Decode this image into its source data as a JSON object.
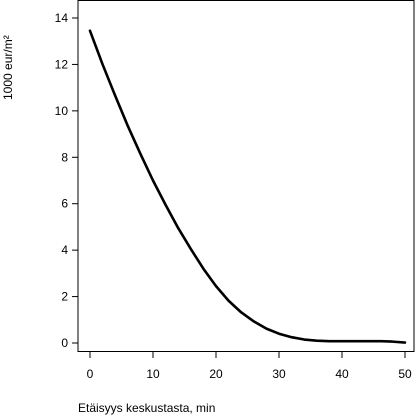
{
  "chart_data": {
    "type": "line",
    "title": "",
    "xlabel": "Etäisyys keskustasta, min",
    "ylabel": "1000 eur/m²",
    "xlim": [
      0,
      50
    ],
    "ylim": [
      0,
      14
    ],
    "x_ticks": [
      0,
      10,
      20,
      30,
      40,
      50
    ],
    "y_ticks": [
      0,
      2,
      4,
      6,
      8,
      10,
      12,
      14
    ],
    "grid": false,
    "legend": "none",
    "series": [
      {
        "color": "#000000",
        "x": [
          0,
          2,
          4,
          6,
          8,
          10,
          12,
          14,
          16,
          18,
          20,
          22,
          24,
          26,
          28,
          30,
          32,
          34,
          36,
          38,
          40,
          42,
          44,
          46,
          48,
          50
        ],
        "y": [
          13.45,
          12.0,
          10.65,
          9.35,
          8.15,
          7.0,
          5.95,
          4.95,
          4.05,
          3.2,
          2.45,
          1.82,
          1.32,
          0.93,
          0.62,
          0.4,
          0.25,
          0.15,
          0.1,
          0.08,
          0.08,
          0.08,
          0.08,
          0.08,
          0.06,
          0.02
        ]
      }
    ]
  }
}
